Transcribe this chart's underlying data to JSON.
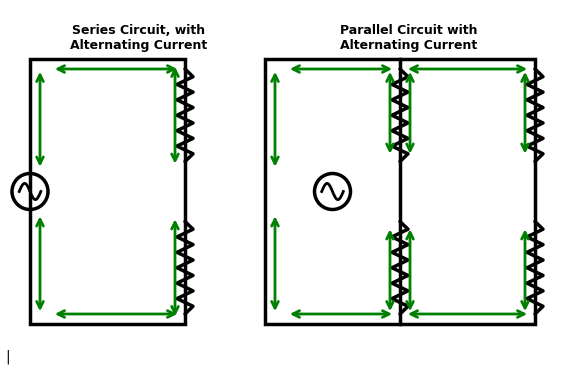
{
  "title1": "Series Circuit, with\nAlternating Current",
  "title2": "Parallel Circuit with\nAlternating Current",
  "bg_color": "#ffffff",
  "circuit_color": "#000000",
  "arrow_color": "#008000",
  "line_width": 2.5,
  "arrow_lw": 2.0
}
